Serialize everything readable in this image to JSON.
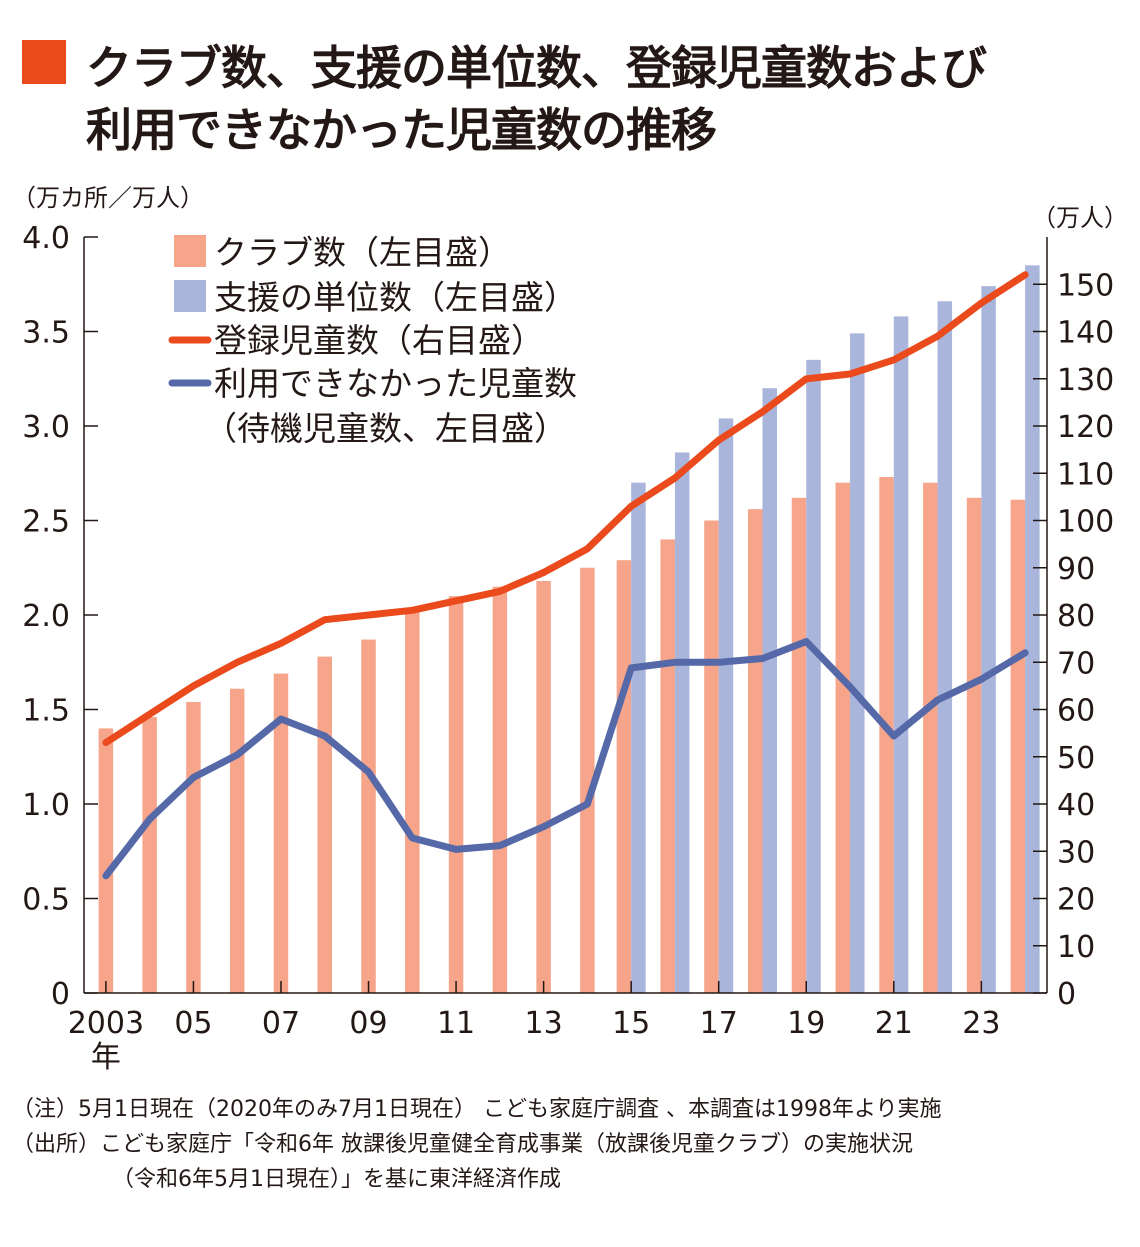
{
  "title": {
    "line1": "クラブ数、支援の単位数、登録児童数および",
    "line2": "利用できなかった児童数の推移",
    "marker_color": "#ea4a1c"
  },
  "units": {
    "left": "（万カ所／万人）",
    "right": "（万人）"
  },
  "notes": {
    "note": "（注）5月1日現在（2020年のみ7月1日現在） こども家庭庁調査 、本調査は1998年より実施",
    "source1": "（出所）こども家庭庁「令和6年 放課後児童健全育成事業（放課後児童クラブ）の実施状況",
    "source2": "（令和6年5月1日現在）」を基に東洋経済作成"
  },
  "chart_data": {
    "type": "bar",
    "x": [
      2003,
      2004,
      2005,
      2006,
      2007,
      2008,
      2009,
      2010,
      2011,
      2012,
      2013,
      2014,
      2015,
      2016,
      2017,
      2018,
      2019,
      2020,
      2021,
      2022,
      2023,
      2024
    ],
    "x_tick_labels": [
      "2003",
      "05",
      "07",
      "09",
      "11",
      "13",
      "15",
      "17",
      "19",
      "21",
      "23"
    ],
    "x_tick_values": [
      2003,
      2005,
      2007,
      2009,
      2011,
      2013,
      2015,
      2017,
      2019,
      2021,
      2023
    ],
    "x_first_suffix": "年",
    "y_left": {
      "min": 0,
      "max": 4.0,
      "ticks": [
        0,
        0.5,
        1.0,
        1.5,
        2.0,
        2.5,
        3.0,
        3.5,
        4.0
      ],
      "tick_labels": [
        "0",
        "0.5",
        "1.0",
        "1.5",
        "2.0",
        "2.5",
        "3.0",
        "3.5",
        "4.0"
      ]
    },
    "y_right": {
      "min": 0,
      "max": 160,
      "ticks": [
        0,
        10,
        20,
        30,
        40,
        50,
        60,
        70,
        80,
        90,
        100,
        110,
        120,
        130,
        140,
        150
      ]
    },
    "grid": false,
    "legend_position": "top-left",
    "series": [
      {
        "name": "クラブ数（左目盛）",
        "type": "bar",
        "axis": "left",
        "color": "#f6a58b",
        "values": [
          1.4,
          1.46,
          1.54,
          1.61,
          1.69,
          1.78,
          1.87,
          2.02,
          2.1,
          2.15,
          2.18,
          2.25,
          2.29,
          2.4,
          2.5,
          2.56,
          2.62,
          2.7,
          2.73,
          2.7,
          2.62,
          2.61
        ]
      },
      {
        "name": "支援の単位数（左目盛）",
        "type": "bar",
        "axis": "left",
        "color": "#a9b5db",
        "values": [
          null,
          null,
          null,
          null,
          null,
          null,
          null,
          null,
          null,
          null,
          null,
          null,
          2.7,
          2.86,
          3.04,
          3.2,
          3.35,
          3.49,
          3.58,
          3.66,
          3.74,
          3.85
        ]
      },
      {
        "name": "登録児童数（右目盛）",
        "type": "line",
        "axis": "right",
        "color": "#ea4a1c",
        "values": [
          53,
          59,
          65,
          70,
          74,
          79,
          80,
          81,
          83,
          85,
          89,
          94,
          103,
          109,
          117,
          123,
          130,
          131,
          134,
          139,
          146,
          152
        ]
      },
      {
        "name": "利用できなかった児童数",
        "name2": "（待機児童数、左目盛）",
        "type": "line",
        "axis": "left",
        "color": "#5568a8",
        "values": [
          0.62,
          0.92,
          1.14,
          1.26,
          1.45,
          1.36,
          1.17,
          0.82,
          0.76,
          0.78,
          0.88,
          1.0,
          1.72,
          1.75,
          1.75,
          1.77,
          1.86,
          1.62,
          1.36,
          1.55,
          1.66,
          1.8
        ]
      }
    ]
  }
}
